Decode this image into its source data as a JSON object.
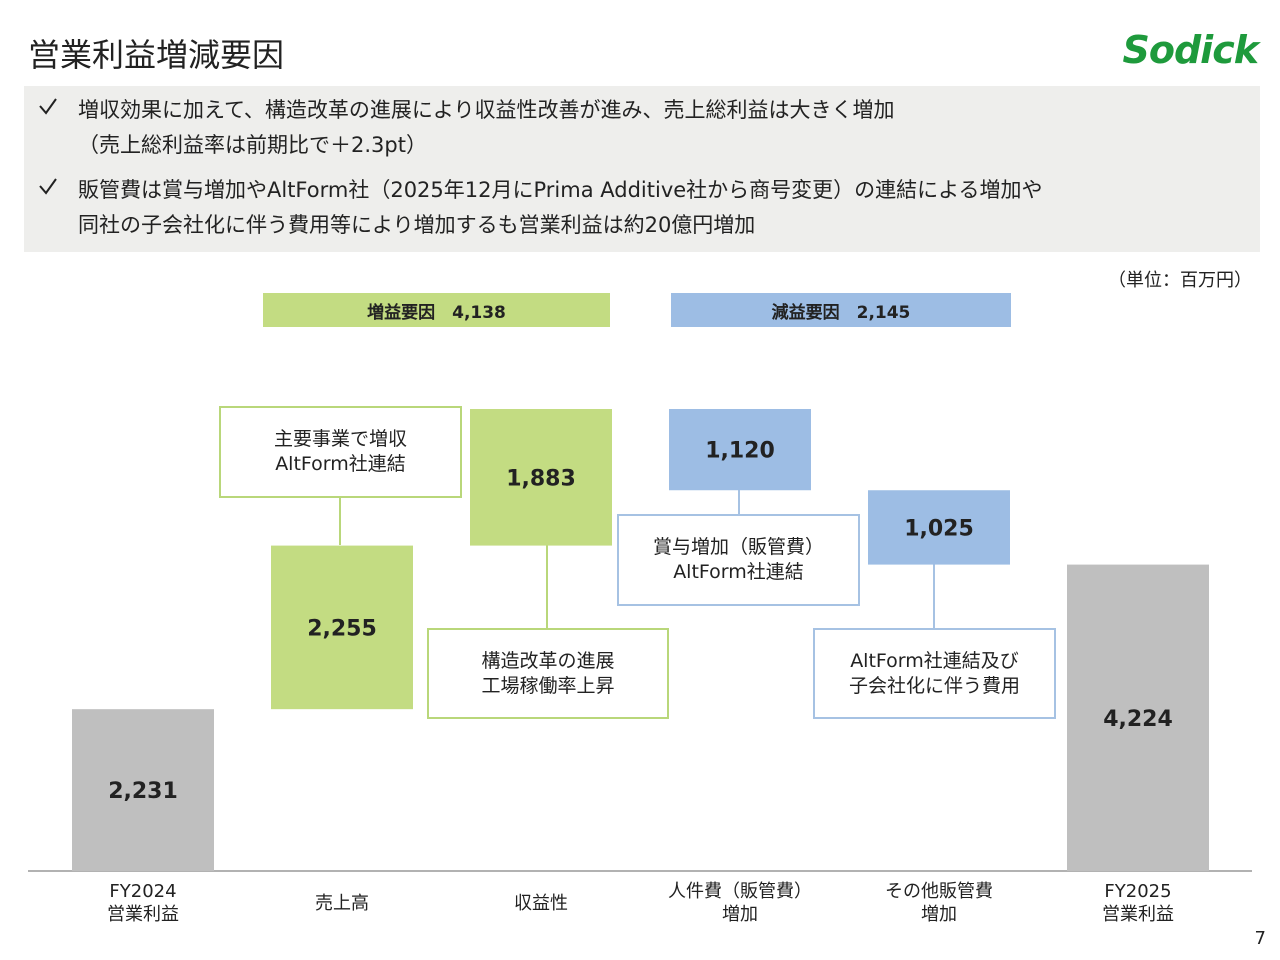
{
  "page": {
    "title": "営業利益増減要因",
    "logo": "Sodick",
    "page_number": "7",
    "bullets": [
      "増収効果に加えて、構造改革の進展により収益性改善が進み、売上総利益は大きく増加\n（売上総利益率は前期比で＋2.3pt）",
      "販管費は賞与増加やAltForm社（2025年12月にPrima Additive社から商号変更）の連結による増加や\n同社の子会社化に伴う費用等により増加するも営業利益は約20億円増加"
    ]
  },
  "chart_data": {
    "type": "waterfall",
    "unit": "（単位：百万円）",
    "categories": [
      "FY2024\n営業利益",
      "売上高",
      "収益性",
      "人件費（販管費）\n増加",
      "その他販管費\n増加",
      "FY2025\n営業利益"
    ],
    "values": [
      2231,
      2255,
      1883,
      -1120,
      -1025,
      4224
    ],
    "value_labels": [
      "2,231",
      "2,255",
      "1,883",
      "1,120",
      "1,025",
      "4,224"
    ],
    "colors": [
      "#bfbfbf",
      "#c3dc82",
      "#c3dc82",
      "#9dbde4",
      "#9dbde4",
      "#bfbfbf"
    ],
    "summary": [
      "増益要因　4,138",
      "減益要因　2,145"
    ],
    "annotations": [
      "主要事業で増収\nAltForm社連結",
      "構造改革の進展\n工場稼働率上昇",
      "賞与増加（販管費）\nAltForm社連結",
      "AltForm社連結及び\n子会社化に伴う費用"
    ]
  }
}
